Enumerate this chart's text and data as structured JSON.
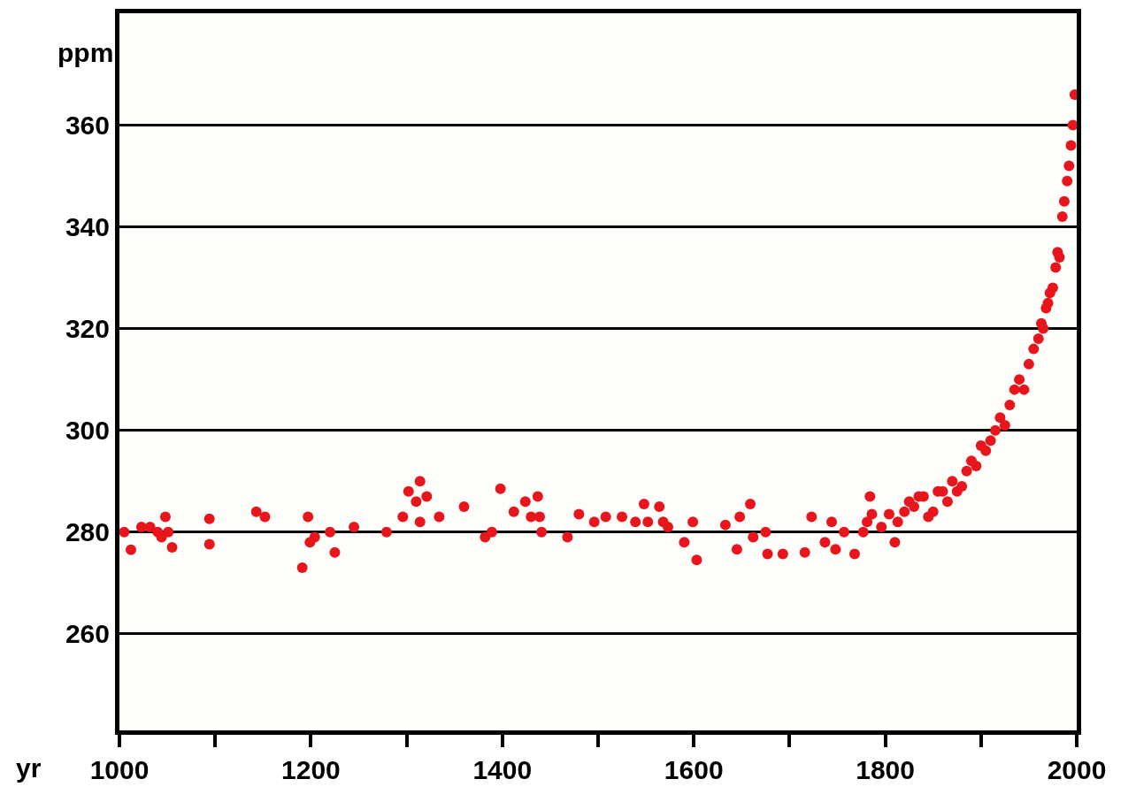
{
  "chart_data": {
    "type": "scatter",
    "xlabel": "yr",
    "ylabel": "ppm",
    "x": [
      1005,
      1012,
      1023,
      1032,
      1040,
      1044,
      1048,
      1051,
      1055,
      1094,
      1094,
      1143,
      1152,
      1191,
      1197,
      1199,
      1204,
      1220,
      1225,
      1245,
      1279,
      1296,
      1302,
      1310,
      1314,
      1314,
      1321,
      1334,
      1360,
      1382,
      1389,
      1398,
      1412,
      1424,
      1430,
      1437,
      1439,
      1441,
      1468,
      1480,
      1496,
      1508,
      1525,
      1539,
      1548,
      1552,
      1564,
      1568,
      1573,
      1590,
      1599,
      1603,
      1633,
      1645,
      1648,
      1659,
      1662,
      1675,
      1677,
      1693,
      1716,
      1723,
      1737,
      1744,
      1748,
      1757,
      1768,
      1777,
      1781,
      1784,
      1786,
      1796,
      1804,
      1810,
      1813,
      1820,
      1825,
      1830,
      1835,
      1840,
      1845,
      1850,
      1855,
      1860,
      1865,
      1870,
      1875,
      1880,
      1885,
      1890,
      1895,
      1900,
      1905,
      1910,
      1915,
      1920,
      1925,
      1930,
      1935,
      1940,
      1945,
      1950,
      1955,
      1960,
      1963,
      1965,
      1968,
      1970,
      1972,
      1975,
      1978,
      1980,
      1982,
      1985,
      1987,
      1990,
      1992,
      1994,
      1996,
      1998
    ],
    "values": [
      280,
      276.5,
      281,
      281,
      280,
      279,
      283,
      280,
      277,
      282.6,
      277.6,
      284,
      283,
      273,
      283,
      278,
      279,
      280,
      276,
      281,
      280,
      283,
      288,
      286,
      290,
      282,
      287,
      283,
      285,
      279,
      280,
      288.5,
      284,
      286,
      283,
      287,
      283,
      280,
      279,
      283.5,
      282,
      283,
      283,
      282,
      285.5,
      282,
      285,
      282,
      281,
      278,
      282,
      274.5,
      281.4,
      276.6,
      283,
      285.5,
      279,
      280,
      275.7,
      275.7,
      276,
      283,
      278,
      282,
      276.6,
      280,
      275.7,
      280,
      282,
      287,
      283.5,
      281,
      283.5,
      278,
      282,
      284,
      286,
      285,
      287,
      287,
      283,
      284,
      288,
      288,
      286,
      290,
      288,
      289,
      292,
      294,
      293,
      297,
      296,
      298,
      300,
      302.5,
      301,
      305,
      308,
      310,
      308,
      313,
      316,
      318,
      321,
      320,
      324,
      325,
      327,
      328,
      332,
      335,
      334,
      342,
      345,
      349,
      352,
      356,
      360,
      366
    ],
    "color": "#e8161c",
    "marker": "circle",
    "xlim": [
      1000,
      2000
    ],
    "ylim": [
      241,
      382
    ],
    "xticks": [
      1000,
      {
        "value": 1100,
        "label": null
      },
      1200,
      {
        "value": 1300,
        "label": null
      },
      1400,
      {
        "value": 1500,
        "label": null
      },
      1600,
      {
        "value": 1700,
        "label": null
      },
      1800,
      {
        "value": 1900,
        "label": null
      },
      2000
    ],
    "yticks": [
      260,
      280,
      300,
      320,
      340,
      360
    ],
    "grid": "y"
  }
}
